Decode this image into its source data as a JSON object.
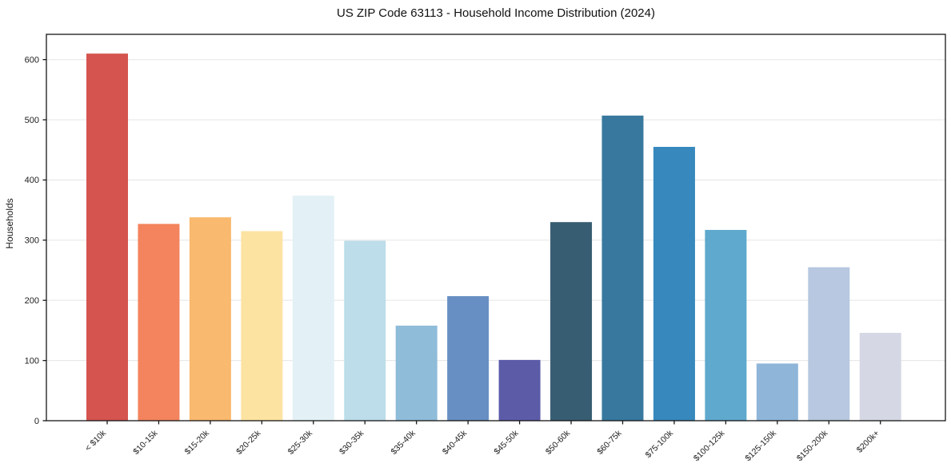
{
  "figure": {
    "title": "US ZIP Code 63113 - Household Income Distribution (2024)",
    "ylabel": "Households"
  },
  "chart_data": {
    "type": "bar",
    "title": "US ZIP Code 63113 - Household Income Distribution (2024)",
    "xlabel": "",
    "ylabel": "Households",
    "categories": [
      "< $10k",
      "$10-15k",
      "$15-20k",
      "$20-25k",
      "$25-30k",
      "$30-35k",
      "$35-40k",
      "$40-45k",
      "$45-50k",
      "$50-60k",
      "$60-75k",
      "$75-100k",
      "$100-125k",
      "$125-150k",
      "$150-200k",
      "$200k+"
    ],
    "values": [
      610,
      327,
      338,
      315,
      374,
      299,
      158,
      207,
      101,
      330,
      507,
      455,
      317,
      95,
      255,
      146
    ],
    "bar_colors": [
      "#d5544f",
      "#f3845e",
      "#f9b96e",
      "#fce3a2",
      "#e3f1f6",
      "#bcdde9",
      "#8fbcd9",
      "#688fc3",
      "#5c5ba8",
      "#375d72",
      "#38789e",
      "#3789bd",
      "#5ea9cd",
      "#8fb6d9",
      "#b7c8e0",
      "#d5d8e4"
    ],
    "yticks": [
      0,
      100,
      200,
      300,
      400,
      500,
      600
    ],
    "ylim": [
      0,
      642
    ],
    "grid": "horizontal",
    "legend_position": "none"
  },
  "colors": {
    "background": "#ffffff",
    "spine": "#161616",
    "grid": "#e8e8e8",
    "tick_text": "#1c1c1c"
  }
}
